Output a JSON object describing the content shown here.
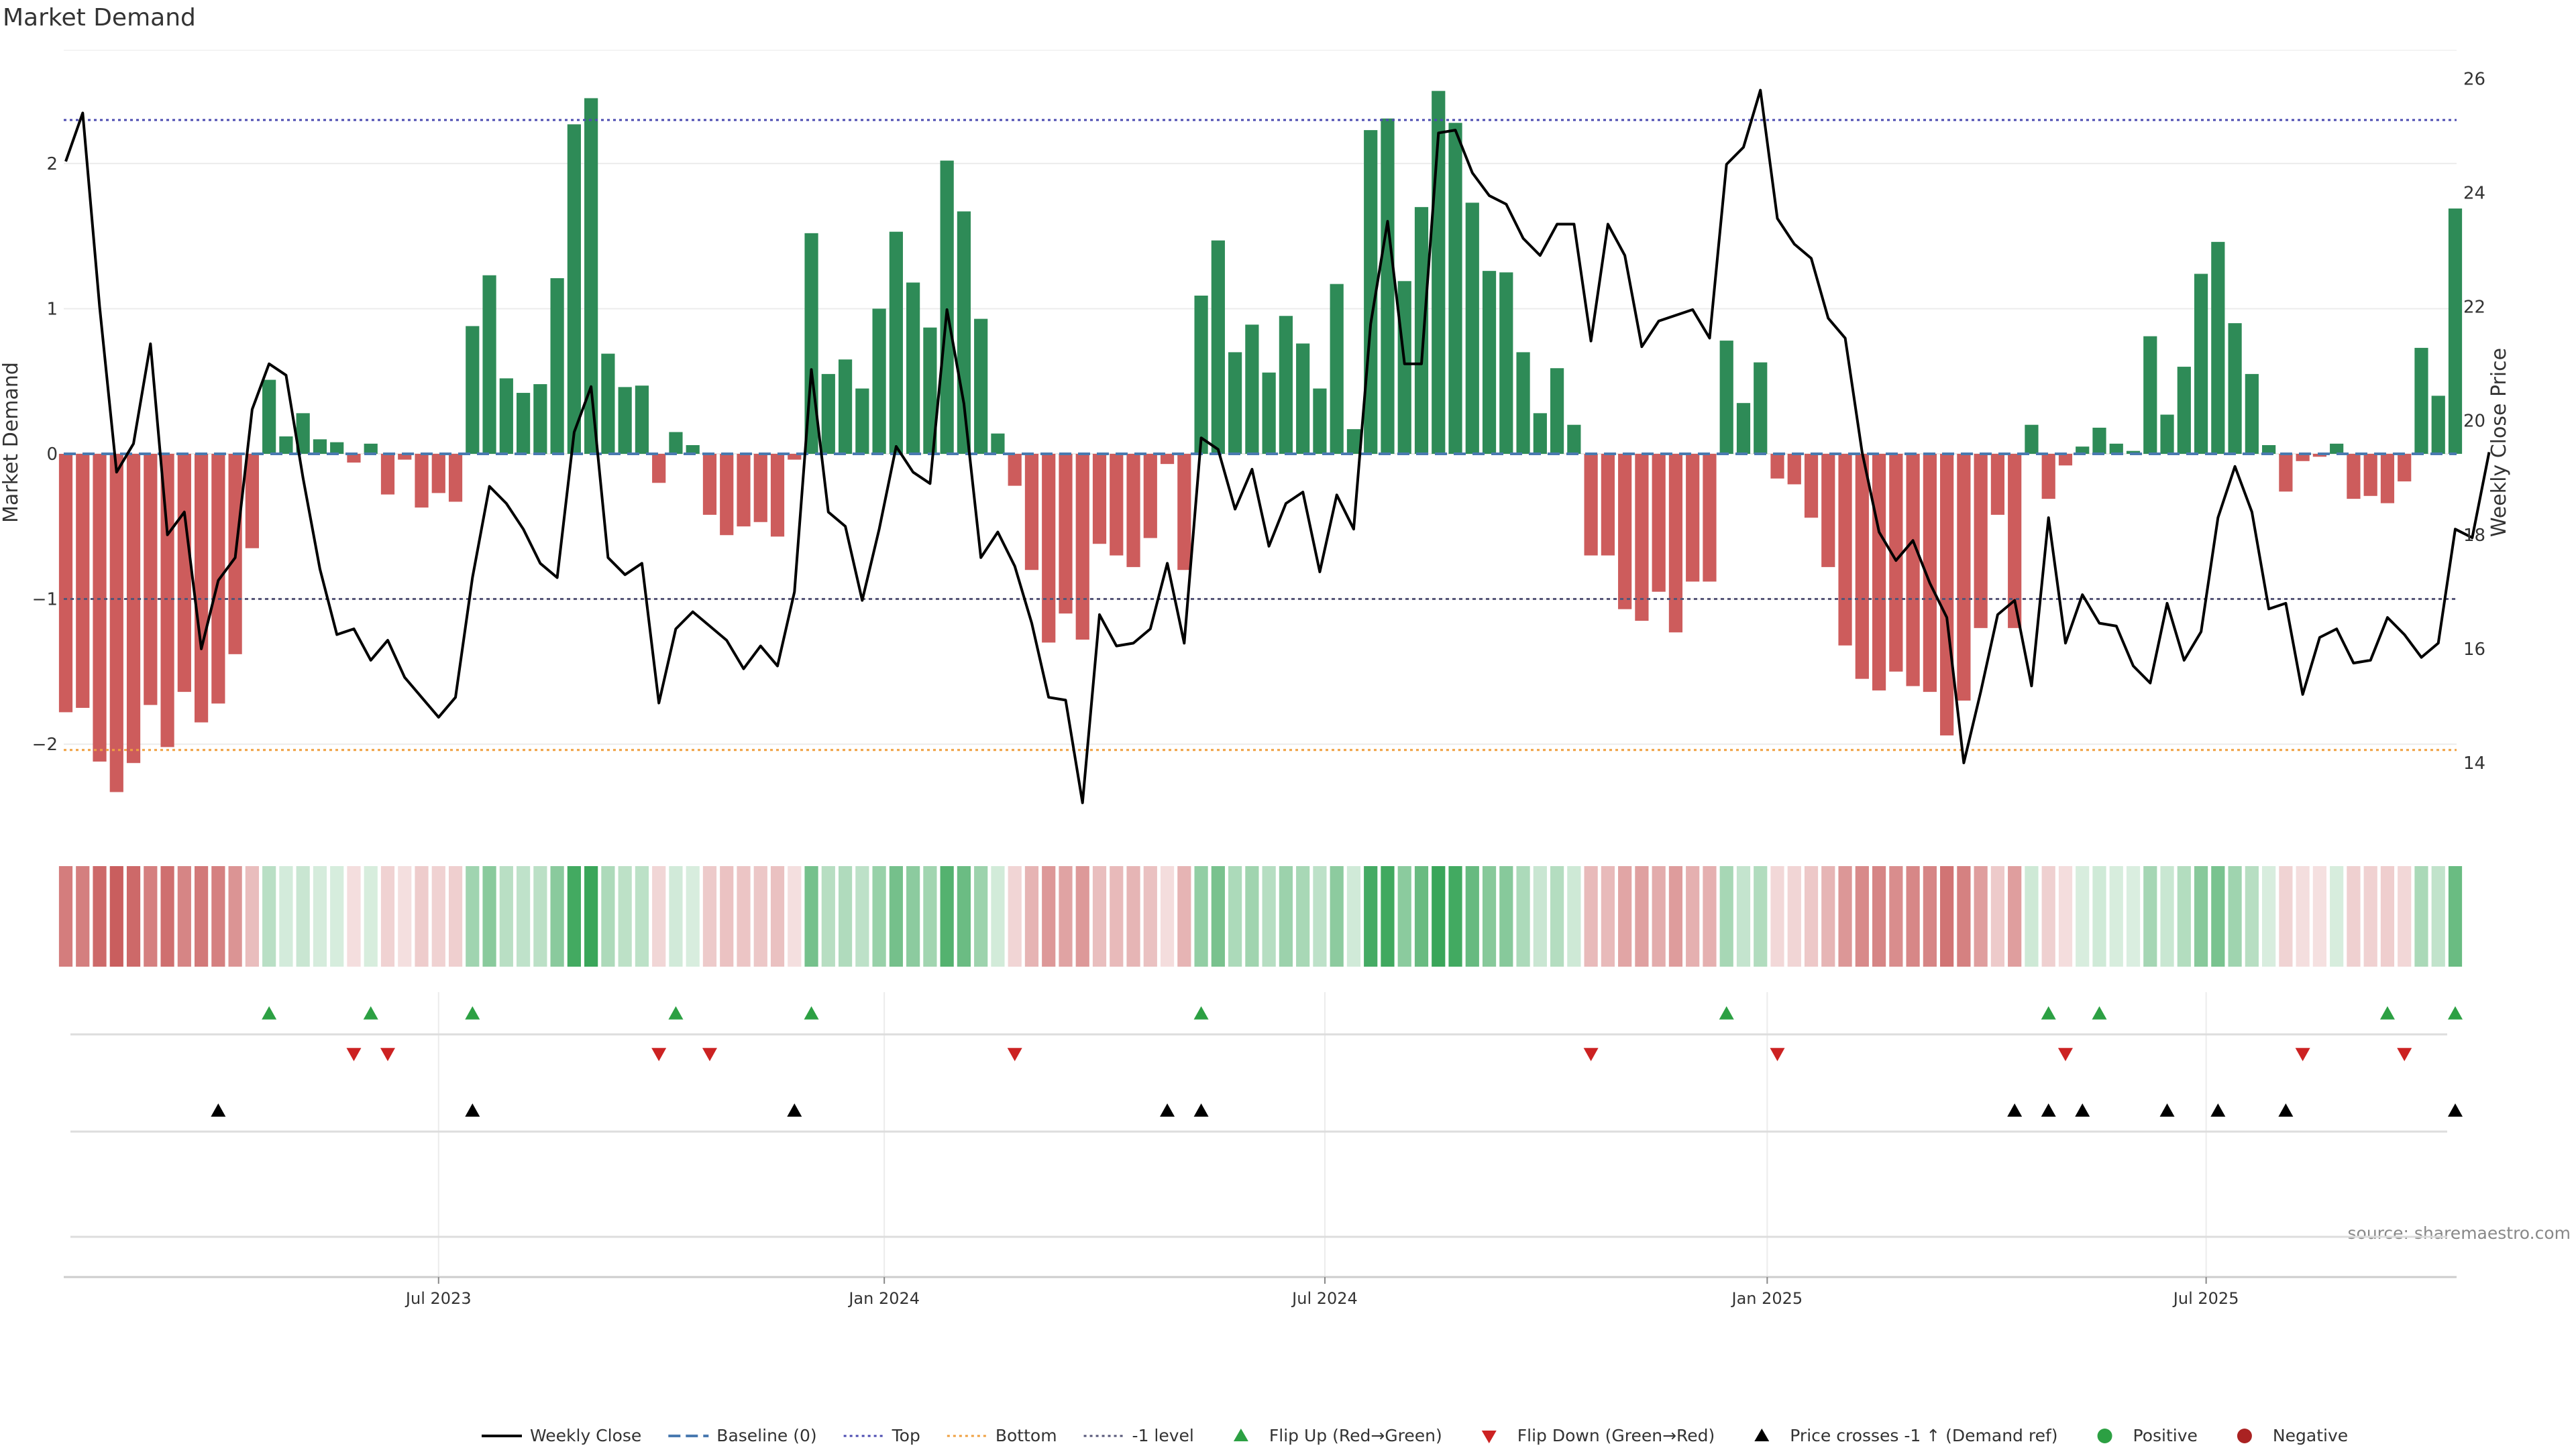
{
  "chart_data": {
    "type": "bar",
    "title": "Market Demand",
    "ylabel": "Market Demand",
    "y2label": "Weekly Close Price",
    "ylim": [
      -2.6,
      2.78
    ],
    "y2lim": [
      12.8,
      26.5
    ],
    "y_ticks": [
      2,
      1,
      0,
      -1,
      -2
    ],
    "y_tick_labels": [
      "2",
      "1",
      "0",
      "−1",
      "−2"
    ],
    "y2_ticks": [
      26,
      24,
      22,
      20,
      18,
      16,
      14
    ],
    "y2_tick_labels": [
      "26",
      "24",
      "22",
      "20",
      "18",
      "16",
      "14"
    ],
    "x_tick_labels": [
      "Jul 2023",
      "Jan 2024",
      "Jul 2024",
      "Jan 2025",
      "Jul 2025"
    ],
    "x_tick_weeks": [
      22,
      48.3,
      74.3,
      100.4,
      126.3
    ],
    "reference_lines": {
      "top": 2.3,
      "bottom": -2.04,
      "minus_one": -1.0,
      "baseline": 0
    },
    "colors": {
      "positive": "#2e8b57",
      "negative": "#cd5c5c",
      "price": "#000000",
      "top_line": "#4b4bb0",
      "bottom_line": "#f0a040",
      "minus_one_line": "#555577",
      "baseline": "#4a7ab0",
      "flip_up": "#2ca043",
      "flip_down": "#cc2222",
      "cross": "#000000"
    },
    "demand": [
      -1.78,
      -1.75,
      -2.12,
      -2.33,
      -2.13,
      -1.73,
      -2.02,
      -1.64,
      -1.85,
      -1.72,
      -1.38,
      -0.65,
      0.51,
      0.12,
      0.28,
      0.1,
      0.08,
      -0.06,
      0.07,
      -0.28,
      -0.04,
      -0.37,
      -0.27,
      -0.33,
      0.88,
      1.23,
      0.52,
      0.42,
      0.48,
      1.21,
      2.27,
      2.45,
      0.69,
      0.46,
      0.47,
      -0.2,
      0.15,
      0.06,
      -0.42,
      -0.56,
      -0.5,
      -0.47,
      -0.57,
      -0.04,
      1.52,
      0.55,
      0.65,
      0.45,
      1.0,
      1.53,
      1.18,
      0.87,
      2.02,
      1.67,
      0.93,
      0.14,
      -0.22,
      -0.8,
      -1.3,
      -1.1,
      -1.28,
      -0.62,
      -0.7,
      -0.78,
      -0.58,
      -0.07,
      -0.8,
      1.09,
      1.47,
      0.7,
      0.89,
      0.56,
      0.95,
      0.76,
      0.45,
      1.17,
      0.17,
      2.23,
      2.31,
      1.19,
      1.7,
      2.5,
      2.28,
      1.73,
      1.26,
      1.25,
      0.7,
      0.28,
      0.59,
      0.2,
      -0.7,
      -0.7,
      -1.07,
      -1.15,
      -0.95,
      -1.23,
      -0.88,
      -0.88,
      0.78,
      0.35,
      0.63,
      -0.17,
      -0.21,
      -0.44,
      -0.78,
      -1.32,
      -1.55,
      -1.63,
      -1.5,
      -1.6,
      -1.64,
      -1.94,
      -1.7,
      -1.2,
      -0.42,
      -1.2,
      0.2,
      -0.31,
      -0.08,
      0.05,
      0.18,
      0.07,
      0.02,
      0.81,
      0.27,
      0.6,
      1.24,
      1.46,
      0.9,
      0.55,
      0.06,
      -0.26,
      -0.05,
      -0.02,
      0.07,
      -0.31,
      -0.29,
      -0.34,
      -0.19,
      0.73,
      0.4,
      1.69
    ],
    "price": [
      24.55,
      25.4,
      22.0,
      19.1,
      19.6,
      21.35,
      18.0,
      18.4,
      16.0,
      17.2,
      17.6,
      20.2,
      21.0,
      20.8,
      19.0,
      17.4,
      16.25,
      16.35,
      15.8,
      16.15,
      15.5,
      15.15,
      14.8,
      15.15,
      17.25,
      18.85,
      18.55,
      18.1,
      17.5,
      17.25,
      19.8,
      20.6,
      17.6,
      17.3,
      17.5,
      15.05,
      16.35,
      16.65,
      16.4,
      16.15,
      15.65,
      16.05,
      15.7,
      17.0,
      20.9,
      18.4,
      18.15,
      16.85,
      18.1,
      19.55,
      19.1,
      18.9,
      21.95,
      20.3,
      17.6,
      18.05,
      17.45,
      16.45,
      15.15,
      15.1,
      13.3,
      16.6,
      16.05,
      16.1,
      16.35,
      17.5,
      16.1,
      19.7,
      19.5,
      18.45,
      19.15,
      17.8,
      18.55,
      18.75,
      17.35,
      18.7,
      18.1,
      21.7,
      23.5,
      21.0,
      21.0,
      25.05,
      25.1,
      24.35,
      23.95,
      23.8,
      23.2,
      22.9,
      23.45,
      23.45,
      21.4,
      23.45,
      22.9,
      21.3,
      21.75,
      21.85,
      21.95,
      21.45,
      24.5,
      24.8,
      25.8,
      23.55,
      23.1,
      22.85,
      21.8,
      21.45,
      19.45,
      18.05,
      17.55,
      17.9,
      17.15,
      16.55,
      14.0,
      15.25,
      16.6,
      16.85,
      15.35,
      18.3,
      16.1,
      16.95,
      16.45,
      16.4,
      15.7,
      15.4,
      16.8,
      15.8,
      16.3,
      18.3,
      19.2,
      18.4,
      16.7,
      16.8,
      15.2,
      16.2,
      16.35,
      15.75,
      15.8,
      16.55,
      16.25,
      15.85,
      16.1,
      18.1,
      17.95,
      19.45
    ],
    "flip_up_weeks": [
      12,
      18,
      24,
      36,
      44,
      67,
      98,
      117,
      120,
      137,
      141
    ],
    "flip_down_weeks": [
      17,
      19,
      35,
      38,
      56,
      90,
      101,
      118,
      132,
      138
    ],
    "cross_weeks": [
      9,
      24,
      43,
      65,
      67,
      115,
      117,
      119,
      124,
      127,
      131,
      141
    ],
    "legend": [
      {
        "label": "Weekly Close",
        "style": "line",
        "color": "#000000"
      },
      {
        "label": "Baseline (0)",
        "style": "dash",
        "color": "#4a7ab0"
      },
      {
        "label": "Top",
        "style": "dot",
        "color": "#4b4bb0"
      },
      {
        "label": "Bottom",
        "style": "dot",
        "color": "#f0a040"
      },
      {
        "label": "-1 level",
        "style": "dot",
        "color": "#555577"
      },
      {
        "label": "Flip Up (Red→Green)",
        "style": "tri-up",
        "color": "#2ca043"
      },
      {
        "label": "Flip Down (Green→Red)",
        "style": "tri-down",
        "color": "#cc2222"
      },
      {
        "label": "Price crosses -1 ↑ (Demand ref)",
        "style": "tri-up",
        "color": "#000000"
      },
      {
        "label": "Positive",
        "style": "dot-marker",
        "color": "#2ca043"
      },
      {
        "label": "Negative",
        "style": "dot-marker",
        "color": "#aa2222"
      }
    ],
    "legend_placement": "bottom",
    "source": "source: sharemaestro.com"
  }
}
